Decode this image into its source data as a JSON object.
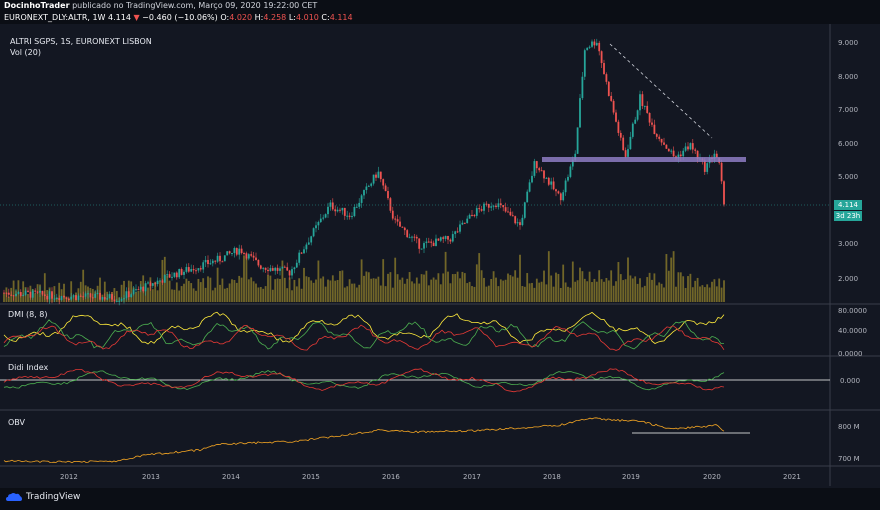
{
  "header": {
    "author": "DocinhoTrader",
    "published_text": "publicado no TradingView.com, Março 09, 2020 19:22:00 CET"
  },
  "symbol_bar": {
    "symbol": "EURONEXT_DLY:ALTR, 1W",
    "last": "4.114",
    "change": "−0.460 (−10.06%)",
    "o_label": "O:",
    "o_value": "4.020",
    "h_label": "H:",
    "h_value": "4.258",
    "l_label": "L:",
    "l_value": "4.010",
    "c_label": "C:",
    "c_value": "4.114"
  },
  "main_pane": {
    "title": "ALTRI SGPS, 1S, EURONEXT LISBON",
    "volume_label": "Vol (20)",
    "price_tag": "4.114",
    "countdown_tag": "3d 23h",
    "y_ticks": [
      "9.000",
      "8.000",
      "7.000",
      "6.000",
      "5.000",
      "3.000",
      "2.000"
    ]
  },
  "dmi_pane": {
    "title": "DMI (8, 8)",
    "y_ticks": [
      "80.0000",
      "40.0000",
      "0.0000"
    ]
  },
  "didi_pane": {
    "title": "Didi Index",
    "y_ticks": [
      "0.000"
    ]
  },
  "obv_pane": {
    "title": "OBV",
    "y_ticks": [
      "800 M",
      "700 M"
    ]
  },
  "x_axis": {
    "labels": [
      "2012",
      "2013",
      "2014",
      "2015",
      "2016",
      "2017",
      "2018",
      "2019",
      "2020",
      "2021"
    ]
  },
  "footer": {
    "brand": "TradingView"
  },
  "colors": {
    "background": "#131722",
    "up_candle": "#26a69a",
    "down_candle": "#ef5350",
    "volume": "#8a7a2a",
    "support_zone": "#8e7cc3",
    "dmi_plus": "#4caf50",
    "dmi_minus": "#e53935",
    "adx": "#ffeb3b",
    "obv": "#f5a623"
  }
}
